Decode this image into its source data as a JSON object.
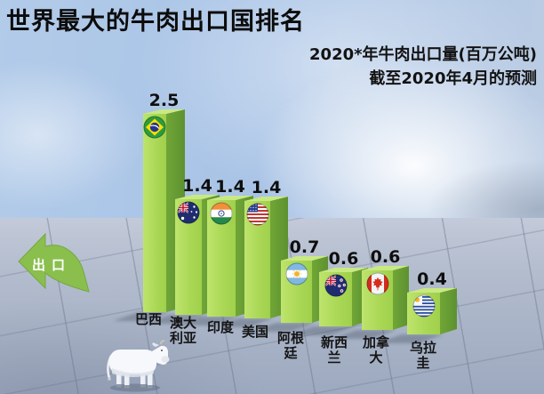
{
  "page": {
    "title": "世界最大的牛肉出口国排名",
    "subtitle_line1": "2020*年牛肉出口量(百万公吨)",
    "subtitle_line2": "截至2020年4月的预测",
    "export_label": "出口"
  },
  "colors": {
    "bar_front": "#abd856",
    "bar_side": "#669c31",
    "bar_top": "#c9e982",
    "arrow_green": "#8abf4e",
    "title_text": "#0c0c0c",
    "value_text": "#0e0e0e",
    "sky": "#a8c3e6",
    "floor": "#aab4c7"
  },
  "icons": {
    "arrow": "export-arrow-icon",
    "cow": "cow-icon"
  },
  "chart_data": {
    "type": "bar",
    "style": "3d-infographic",
    "title": "世界最大的牛肉出口国排名",
    "subtitle": "2020*年牛肉出口量(百万公吨)",
    "note": "截至2020年4月的预测",
    "unit": "百万公吨",
    "categories": [
      "巴西",
      "澳大利亚",
      "印度",
      "美国",
      "阿根廷",
      "新西兰",
      "加拿大",
      "乌拉圭"
    ],
    "values": [
      2.5,
      1.4,
      1.4,
      1.4,
      0.7,
      0.6,
      0.6,
      0.4
    ],
    "flags": [
      "brazil-flag",
      "australia-flag",
      "india-flag",
      "usa-flag",
      "argentina-flag",
      "new-zealand-flag",
      "canada-flag",
      "uruguay-flag"
    ],
    "label_lines": [
      [
        "巴西"
      ],
      [
        "澳大",
        "利亚"
      ],
      [
        "印度"
      ],
      [
        "美国"
      ],
      [
        "阿根",
        "廷"
      ],
      [
        "新西",
        "兰"
      ],
      [
        "加拿",
        "大"
      ],
      [
        "乌拉",
        "圭"
      ]
    ],
    "ylim": [
      0,
      2.5
    ],
    "grid": false,
    "legend": false
  }
}
